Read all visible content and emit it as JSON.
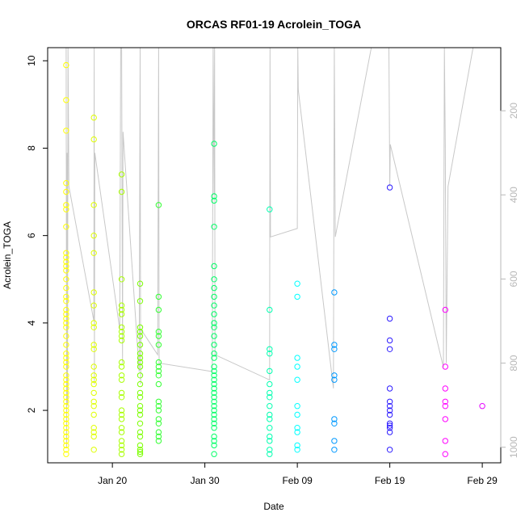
{
  "chart_data": {
    "type": "scatter",
    "title": "ORCAS RF01-19 Acrolein_TOGA",
    "xlabel": "Date",
    "ylabel": "Acrolein_TOGA",
    "x_axis": {
      "type": "date",
      "range": [
        "2016-01-13",
        "2016-03-02"
      ],
      "ticks": [
        {
          "date": "2016-01-20",
          "label": "Jan 20"
        },
        {
          "date": "2016-01-30",
          "label": "Jan 30"
        },
        {
          "date": "2016-02-09",
          "label": "Feb 09"
        },
        {
          "date": "2016-02-19",
          "label": "Feb 19"
        },
        {
          "date": "2016-02-29",
          "label": "Feb 29"
        }
      ]
    },
    "y_axis": {
      "range": [
        0.8,
        10.3
      ],
      "ticks": [
        2,
        4,
        6,
        8,
        10
      ]
    },
    "y2_axis": {
      "range": [
        1037,
        50
      ],
      "reversed": true,
      "ticks": [
        200,
        400,
        600,
        800,
        1000
      ],
      "color": "#b8b8b8"
    },
    "grid": false,
    "flights": [
      {
        "date": "2016-01-15",
        "color": "#ffff00",
        "values": [
          9.9,
          9.1,
          8.4,
          7.2,
          7.0,
          6.7,
          6.6,
          6.2,
          5.6,
          5.5,
          5.4,
          5.3,
          5.2,
          5.0,
          4.8,
          4.6,
          4.5,
          4.3,
          4.2,
          4.1,
          4.0,
          3.9,
          3.7,
          3.5,
          3.3,
          3.2,
          3.1,
          3.0,
          2.8,
          2.7,
          2.6,
          2.5,
          2.4,
          2.3,
          2.2,
          2.1,
          2.0,
          1.9,
          1.8,
          1.7,
          1.6,
          1.5,
          1.4,
          1.3,
          1.2,
          1.1,
          1.0
        ]
      },
      {
        "date": "2016-01-18",
        "color": "#dfff00",
        "values": [
          8.7,
          8.2,
          6.7,
          6.0,
          5.6,
          4.7,
          4.4,
          4.0,
          3.9,
          3.5,
          3.4,
          3.0,
          2.8,
          2.7,
          2.6,
          2.4,
          2.2,
          2.1,
          1.9,
          1.6,
          1.5,
          1.4,
          1.1
        ]
      },
      {
        "date": "2016-01-21",
        "color": "#a8ff00",
        "values": [
          7.4,
          7.0,
          5.0,
          4.4,
          4.3,
          4.2,
          3.9,
          3.8,
          3.7,
          3.6,
          3.1,
          3.0,
          2.8,
          2.7,
          2.4,
          2.3,
          2.0,
          1.9,
          1.8,
          1.6,
          1.5,
          1.3,
          1.2,
          1.1,
          1.0
        ]
      },
      {
        "date": "2016-01-23",
        "color": "#7cff00",
        "values": [
          4.9,
          4.5,
          3.9,
          3.8,
          3.7,
          3.5,
          3.3,
          3.2,
          3.1,
          3.0,
          2.8,
          2.6,
          2.4,
          2.3,
          2.1,
          2.0,
          1.9,
          1.7,
          1.5,
          1.4,
          1.2,
          1.1,
          1.05,
          1.0
        ]
      },
      {
        "date": "2016-01-25",
        "color": "#33ff33",
        "values": [
          6.7,
          4.6,
          4.3,
          3.8,
          3.7,
          3.5,
          3.1,
          3.0,
          2.9,
          2.8,
          2.6,
          2.2,
          2.1,
          2.0,
          1.8,
          1.7,
          1.5,
          1.4,
          1.3
        ]
      },
      {
        "date": "2016-01-31",
        "color": "#00ff66",
        "values": [
          8.1,
          6.9,
          6.8,
          6.2,
          5.3,
          5.0,
          4.8,
          4.6,
          4.4,
          4.2,
          4.0,
          3.9,
          3.7,
          3.5,
          3.3,
          3.2,
          3.0,
          2.9,
          2.8,
          2.7,
          2.6,
          2.5,
          2.4,
          2.3,
          2.2,
          2.1,
          2.0,
          1.9,
          1.8,
          1.7,
          1.6,
          1.4,
          1.3,
          1.2,
          1.0
        ]
      },
      {
        "date": "2016-02-06",
        "color": "#00ffb0",
        "values": [
          6.6,
          4.3,
          3.4,
          3.3,
          2.9,
          2.6,
          2.4,
          2.3,
          2.1,
          1.9,
          1.8,
          1.6,
          1.4,
          1.3,
          1.1,
          1.0
        ]
      },
      {
        "date": "2016-02-09",
        "color": "#00ffff",
        "values": [
          4.9,
          4.6,
          3.2,
          3.0,
          2.7,
          2.1,
          1.9,
          1.6,
          1.5,
          1.2,
          1.1
        ]
      },
      {
        "date": "2016-02-13",
        "color": "#0099ff",
        "values": [
          4.7,
          3.5,
          3.4,
          2.8,
          2.7,
          1.8,
          1.7,
          1.3,
          1.1
        ]
      },
      {
        "date": "2016-02-19",
        "color": "#2e1dff",
        "values": [
          7.1,
          4.1,
          3.6,
          3.4,
          2.5,
          2.2,
          2.1,
          2.0,
          1.9,
          1.7,
          1.65,
          1.6,
          1.5,
          1.1
        ]
      },
      {
        "date": "2016-02-25",
        "color": "#ff00ff",
        "values": [
          4.3,
          3.0,
          2.5,
          2.2,
          2.1,
          1.8,
          1.3,
          1.0
        ]
      },
      {
        "date": "2016-02-29",
        "color": "#e400ff",
        "values": [
          2.1
        ]
      }
    ],
    "altitude_trace": {
      "color": "#c8c8c8",
      "y_units": "y2",
      "points": [
        [
          "2016-01-15",
          50
        ],
        [
          "2016-01-15.05",
          1000
        ],
        [
          "2016-01-15.1",
          300
        ],
        [
          "2016-01-15.15",
          900
        ],
        [
          "2016-01-15.2",
          50
        ],
        [
          "2016-01-15.3",
          380
        ],
        [
          "2016-01-18",
          700
        ],
        [
          "2016-01-18.03",
          50
        ],
        [
          "2016-01-18.06",
          850
        ],
        [
          "2016-01-18.1",
          300
        ],
        [
          "2016-01-20.8",
          720
        ],
        [
          "2016-01-20.9",
          50
        ],
        [
          "2016-01-21",
          50
        ],
        [
          "2016-01-21.1",
          800
        ],
        [
          "2016-01-21.15",
          250
        ],
        [
          "2016-01-22.9",
          820
        ],
        [
          "2016-01-23",
          50
        ],
        [
          "2016-01-23.05",
          850
        ],
        [
          "2016-01-23.1",
          720
        ],
        [
          "2016-01-24.9",
          780
        ],
        [
          "2016-01-25",
          50
        ],
        [
          "2016-01-25.05",
          800
        ],
        [
          "2016-01-30.8",
          820
        ],
        [
          "2016-01-30.9",
          50
        ],
        [
          "2016-01-31",
          400
        ],
        [
          "2016-01-31.05",
          50
        ],
        [
          "2016-01-31.1",
          780
        ],
        [
          "2016-02-06",
          840
        ],
        [
          "2016-02-06.05",
          50
        ],
        [
          "2016-02-06.1",
          500
        ],
        [
          "2016-02-09",
          480
        ],
        [
          "2016-02-09.05",
          50
        ],
        [
          "2016-02-09.1",
          150
        ],
        [
          "2016-02-12.9",
          860
        ],
        [
          "2016-02-13",
          50
        ],
        [
          "2016-02-13.1",
          500
        ],
        [
          "2016-02-17",
          50
        ],
        [
          "2016-02-18.9",
          50
        ],
        [
          "2016-02-19",
          380
        ],
        [
          "2016-02-19.05",
          280
        ],
        [
          "2016-02-24.8",
          810
        ],
        [
          "2016-02-24.9",
          50
        ],
        [
          "2016-02-25",
          280
        ],
        [
          "2016-02-25.1",
          800
        ],
        [
          "2016-02-25.3",
          380
        ],
        [
          "2016-02-28",
          50
        ]
      ]
    }
  }
}
